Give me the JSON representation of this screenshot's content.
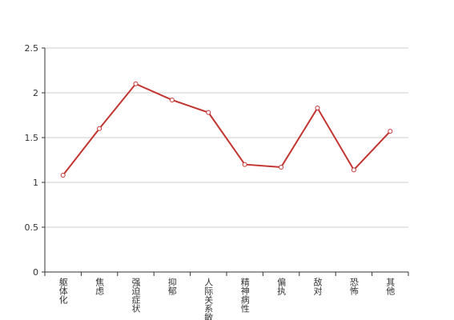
{
  "chart_data": {
    "type": "line",
    "categories": [
      "躯体化",
      "焦虑",
      "强迫症状",
      "抑郁",
      "人际关系敏感",
      "精神病性",
      "偏执",
      "敌对",
      "恐怖",
      "其他"
    ],
    "series": [
      {
        "color": "#c23531",
        "values": [
          1.08,
          1.6,
          2.1,
          1.92,
          1.78,
          1.2,
          1.17,
          1.83,
          1.14,
          1.57
        ]
      }
    ],
    "ylim": [
      0,
      2.5
    ],
    "yticks": [
      0,
      0.5,
      1,
      1.5,
      2,
      2.5
    ],
    "grid": true
  }
}
